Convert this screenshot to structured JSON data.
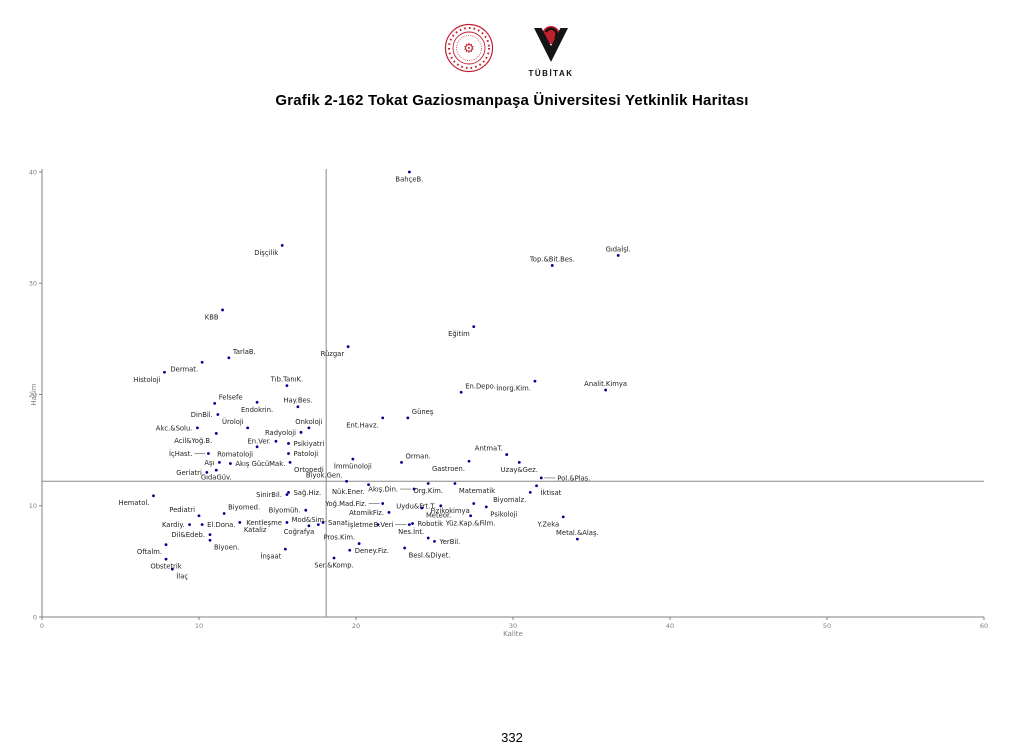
{
  "header": {
    "title": "Grafik 2-162 Tokat Gaziosmanpaşa Üniversitesi Yetkinlik Haritası",
    "tubitak_caption": "TÜBİTAK",
    "logo_color": "#c11f2e"
  },
  "page": {
    "number": "332"
  },
  "chart_data": {
    "type": "scatter",
    "title": "Grafik 2-162 Tokat Gaziosmanpaşa Üniversitesi Yetkinlik Haritası",
    "xlabel": "Kalite",
    "ylabel": "Hacim",
    "xlim": [
      0,
      60
    ],
    "ylim": [
      0,
      40
    ],
    "xticks": [
      0,
      10,
      20,
      30,
      40,
      50,
      60
    ],
    "yticks": [
      0,
      10,
      20,
      30,
      40
    ],
    "grid": false,
    "reference_lines": {
      "x": 18.1,
      "y": 12.2
    },
    "point_color": "#00008b",
    "axis_color": "#808080",
    "label_color": "#222222",
    "points": [
      {
        "label": "BahçeB.",
        "x": 23.4,
        "y": 40.0,
        "lp": "b"
      },
      {
        "label": "Dişçilik",
        "x": 15.3,
        "y": 33.4,
        "lp": "bl"
      },
      {
        "label": "Gıdaİşl.",
        "x": 36.7,
        "y": 32.5,
        "lp": "a"
      },
      {
        "label": "Top.&Bit.Bes.",
        "x": 32.5,
        "y": 31.6,
        "lp": "a"
      },
      {
        "label": "KBB",
        "x": 11.5,
        "y": 27.6,
        "lp": "bl"
      },
      {
        "label": "Eğitim",
        "x": 27.5,
        "y": 26.1,
        "lp": "bl"
      },
      {
        "label": "Rüzgar",
        "x": 19.5,
        "y": 24.3,
        "lp": "bl"
      },
      {
        "label": "TarlaB.",
        "x": 11.9,
        "y": 23.3,
        "lp": "ar"
      },
      {
        "label": "Dermat.",
        "x": 10.2,
        "y": 22.9,
        "lp": "bl"
      },
      {
        "label": "Histoloji",
        "x": 7.8,
        "y": 22.0,
        "lp": "bl"
      },
      {
        "label": "Tıb.TanıK.",
        "x": 15.6,
        "y": 20.8,
        "lp": "a"
      },
      {
        "label": "İnorg.Kim.",
        "x": 31.4,
        "y": 21.2,
        "lp": "bl"
      },
      {
        "label": "Analit.Kimya",
        "x": 35.9,
        "y": 20.4,
        "lp": "a"
      },
      {
        "label": "En.Depo.",
        "x": 26.7,
        "y": 20.2,
        "lp": "ar"
      },
      {
        "label": "Hay.Bes.",
        "x": 16.3,
        "y": 18.9,
        "lp": "a"
      },
      {
        "label": "Felsefe",
        "x": 11.0,
        "y": 19.2,
        "lp": "ar"
      },
      {
        "label": "Endokrin.",
        "x": 13.7,
        "y": 19.3,
        "lp": "b"
      },
      {
        "label": "DinBil.",
        "x": 11.2,
        "y": 18.2,
        "lp": "l"
      },
      {
        "label": "Güneş",
        "x": 23.3,
        "y": 17.9,
        "lp": "ar"
      },
      {
        "label": "Ent.Havz.",
        "x": 21.7,
        "y": 17.9,
        "lp": "bl"
      },
      {
        "label": "Onkoloji",
        "x": 17.0,
        "y": 17.0,
        "lp": "a"
      },
      {
        "label": "Üroloji",
        "x": 13.1,
        "y": 17.0,
        "lp": "al"
      },
      {
        "label": "Akc.&Solu.",
        "x": 9.9,
        "y": 17.0,
        "lp": "l"
      },
      {
        "label": "Radyoloji",
        "x": 16.5,
        "y": 16.6,
        "lp": "l"
      },
      {
        "label": "Acil&Yoğ.B.",
        "x": 11.1,
        "y": 16.5,
        "lp": "bl"
      },
      {
        "label": "En.Ver.",
        "x": 14.9,
        "y": 15.8,
        "lp": "l"
      },
      {
        "label": "Psikiyatri",
        "x": 15.7,
        "y": 15.6,
        "lp": "r"
      },
      {
        "label": "İçHast.",
        "x": 10.6,
        "y": 14.7,
        "lp": "l",
        "conn": true
      },
      {
        "label": "Romatoloji",
        "x": 13.7,
        "y": 15.3,
        "lp": "bl"
      },
      {
        "label": "Patoloji",
        "x": 15.7,
        "y": 14.7,
        "lp": "r"
      },
      {
        "label": "Aşı",
        "x": 11.3,
        "y": 13.9,
        "lp": "l"
      },
      {
        "label": "Akış GücüMak.",
        "x": 12.0,
        "y": 13.8,
        "lp": "r"
      },
      {
        "label": "Ortopedi",
        "x": 15.8,
        "y": 13.9,
        "lp": "br"
      },
      {
        "label": "Geriatri",
        "x": 10.5,
        "y": 13.0,
        "lp": "l"
      },
      {
        "label": "GıdaGüv.",
        "x": 11.1,
        "y": 13.2,
        "lp": "b"
      },
      {
        "label": "AntmaT.",
        "x": 29.6,
        "y": 14.6,
        "lp": "al"
      },
      {
        "label": "Orman.",
        "x": 22.9,
        "y": 13.9,
        "lp": "ar"
      },
      {
        "label": "Gastroen.",
        "x": 27.2,
        "y": 14.0,
        "lp": "bl"
      },
      {
        "label": "İmmünoloji",
        "x": 19.8,
        "y": 14.2,
        "lp": "b"
      },
      {
        "label": "Uzay&Gez.",
        "x": 30.4,
        "y": 13.9,
        "lp": "b"
      },
      {
        "label": "Biyok.Gen.",
        "x": 19.4,
        "y": 12.2,
        "lp": "al"
      },
      {
        "label": "Pol.&Plas.",
        "x": 31.8,
        "y": 12.5,
        "lp": "r",
        "conn": true
      },
      {
        "label": "Nük.Ener.",
        "x": 20.8,
        "y": 11.9,
        "lp": "bl"
      },
      {
        "label": "Akış.Din.",
        "x": 23.7,
        "y": 11.5,
        "lp": "l",
        "conn": true
      },
      {
        "label": "Org.Kim.",
        "x": 24.6,
        "y": 12.0,
        "lp": "b"
      },
      {
        "label": "Matematik",
        "x": 26.3,
        "y": 12.0,
        "lp": "br"
      },
      {
        "label": "İktisat",
        "x": 31.5,
        "y": 11.8,
        "lp": "br"
      },
      {
        "label": "SinirBil.",
        "x": 15.6,
        "y": 11.0,
        "lp": "l"
      },
      {
        "label": "Sağ.Hiz.",
        "x": 15.7,
        "y": 11.2,
        "lp": "r"
      },
      {
        "label": "Hematol.",
        "x": 7.1,
        "y": 10.9,
        "lp": "bl"
      },
      {
        "label": "Biyomalz.",
        "x": 31.1,
        "y": 11.2,
        "lp": "bl"
      },
      {
        "label": "Yoğ.Mad.Fiz.",
        "x": 21.7,
        "y": 10.2,
        "lp": "l",
        "conn": true
      },
      {
        "label": "Uydu&Frt.T.",
        "x": 25.4,
        "y": 10.0,
        "lp": "l"
      },
      {
        "label": "Fizikokimya",
        "x": 27.5,
        "y": 10.2,
        "lp": "bl"
      },
      {
        "label": "Psikoloji",
        "x": 28.3,
        "y": 9.9,
        "lp": "br"
      },
      {
        "label": "Biyomüh.",
        "x": 16.8,
        "y": 9.6,
        "lp": "l"
      },
      {
        "label": "Pediatri",
        "x": 10.0,
        "y": 9.1,
        "lp": "al"
      },
      {
        "label": "Biyomed.",
        "x": 11.6,
        "y": 9.3,
        "lp": "ar"
      },
      {
        "label": "AtomikFiz.",
        "x": 22.1,
        "y": 9.4,
        "lp": "l"
      },
      {
        "label": "Meteor.",
        "x": 24.2,
        "y": 9.8,
        "lp": "br"
      },
      {
        "label": "Kentleşme",
        "x": 15.6,
        "y": 8.5,
        "lp": "l"
      },
      {
        "label": "Mod&Sim.",
        "x": 17.0,
        "y": 8.2,
        "lp": "a"
      },
      {
        "label": "Kardiy.",
        "x": 9.4,
        "y": 8.3,
        "lp": "l"
      },
      {
        "label": "El.Dona.",
        "x": 10.2,
        "y": 8.3,
        "lp": "r"
      },
      {
        "label": "Yüz.Kap.&Film.",
        "x": 27.3,
        "y": 9.1,
        "lp": "b"
      },
      {
        "label": "Sanat",
        "x": 17.9,
        "y": 8.5,
        "lp": "r"
      },
      {
        "label": "İşletme",
        "x": 21.4,
        "y": 8.3,
        "lp": "l"
      },
      {
        "label": "B.Veri",
        "x": 23.4,
        "y": 8.3,
        "lp": "l",
        "conn": true
      },
      {
        "label": "Robotik",
        "x": 23.6,
        "y": 8.4,
        "lp": "r"
      },
      {
        "label": "Y.Zeka",
        "x": 33.2,
        "y": 9.0,
        "lp": "bl"
      },
      {
        "label": "Dil&Edeb.",
        "x": 10.7,
        "y": 7.4,
        "lp": "l"
      },
      {
        "label": "Kataliz",
        "x": 12.6,
        "y": 8.5,
        "lp": "br"
      },
      {
        "label": "Coğrafya",
        "x": 17.6,
        "y": 8.3,
        "lp": "bl"
      },
      {
        "label": "Biyoen.",
        "x": 10.7,
        "y": 6.9,
        "lp": "br"
      },
      {
        "label": "İnşaat",
        "x": 15.5,
        "y": 6.1,
        "lp": "bl"
      },
      {
        "label": "Oftalm.",
        "x": 7.9,
        "y": 6.5,
        "lp": "bl"
      },
      {
        "label": "Obstetrik",
        "x": 7.9,
        "y": 5.2,
        "lp": "b"
      },
      {
        "label": "İlaç",
        "x": 8.3,
        "y": 4.3,
        "lp": "br"
      },
      {
        "label": "Nes.İnt.",
        "x": 24.6,
        "y": 7.1,
        "lp": "al"
      },
      {
        "label": "YerBil.",
        "x": 25.0,
        "y": 6.8,
        "lp": "r"
      },
      {
        "label": "Pros.Kim.",
        "x": 20.2,
        "y": 6.6,
        "lp": "al"
      },
      {
        "label": "Deney.Fiz.",
        "x": 19.6,
        "y": 6.0,
        "lp": "r"
      },
      {
        "label": "Besl.&Diyet.",
        "x": 23.1,
        "y": 6.2,
        "lp": "br"
      },
      {
        "label": "Ser.&Komp.",
        "x": 18.6,
        "y": 5.3,
        "lp": "b"
      },
      {
        "label": "Metal.&Alaş.",
        "x": 34.1,
        "y": 7.0,
        "lp": "a"
      }
    ]
  }
}
